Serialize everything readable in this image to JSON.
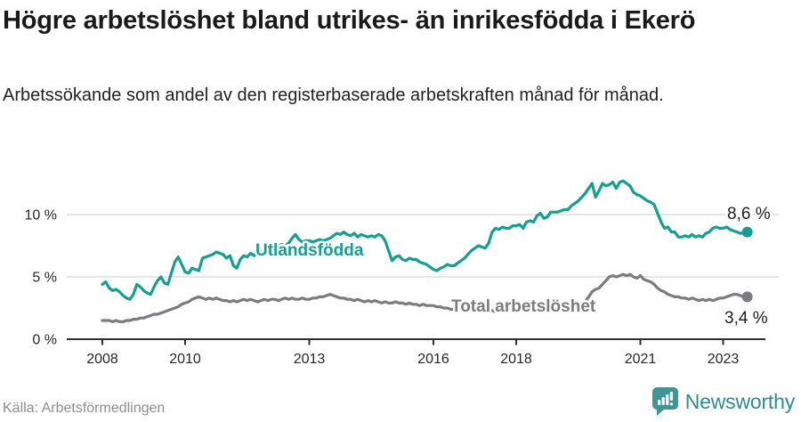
{
  "header": {
    "title": "Högre arbetslöshet bland utrikes- än inrikesfödda i Ekerö",
    "subtitle": "Arbetssökande som andel av den registerbaserade arbetskraften månad för månad."
  },
  "footer": {
    "source": "Källa: Arbetsförmedlingen",
    "brand": "Newsworthy"
  },
  "colors": {
    "foreign_born_line": "#14a091",
    "total_line": "#7c7c7f",
    "axis": "#2f2f2f",
    "gridline": "#dedede",
    "tick_label": "#262626",
    "end_label": "#1c1c1c",
    "brand_teal": "#3e9794"
  },
  "chart_data": {
    "type": "line",
    "title": "Högre arbetslöshet bland utrikes- än inrikesfödda i Ekerö",
    "subtitle": "Arbetssökande som andel av den registerbaserade arbetskraften månad för månad.",
    "x_start_year": 2008,
    "x_step_months": 1,
    "x_tick_years": [
      2008,
      2010,
      2013,
      2016,
      2018,
      2021,
      2023
    ],
    "y_ticks": [
      {
        "value": 0,
        "label": "0 %"
      },
      {
        "value": 5,
        "label": "5 %"
      },
      {
        "value": 10,
        "label": "10 %"
      }
    ],
    "ylim": [
      0,
      13.5
    ],
    "grid": "horizontal",
    "legend_position": "inline-labels",
    "series": [
      {
        "name": "Utlandsfödda",
        "color": "#14a091",
        "end_value": 8.6,
        "end_label": "8,6 %",
        "values": [
          4.4,
          4.6,
          4.1,
          3.9,
          4.0,
          3.8,
          3.5,
          3.3,
          3.2,
          3.6,
          4.4,
          4.2,
          3.9,
          3.7,
          3.6,
          4.2,
          4.7,
          5.0,
          4.5,
          4.4,
          5.3,
          6.2,
          6.6,
          6.0,
          5.4,
          5.3,
          5.7,
          5.6,
          5.5,
          6.5,
          6.6,
          6.7,
          6.8,
          7.0,
          6.9,
          6.8,
          6.5,
          6.7,
          5.9,
          5.7,
          6.4,
          6.7,
          6.6,
          6.9,
          6.7,
          6.9,
          7.0,
          7.1,
          7.2,
          7.3,
          7.4,
          7.5,
          7.6,
          7.5,
          7.7,
          8.1,
          8.4,
          8.0,
          7.8,
          7.9,
          7.9,
          7.8,
          7.9,
          8.0,
          7.9,
          8.0,
          8.1,
          8.3,
          8.5,
          8.4,
          8.6,
          8.4,
          8.3,
          8.5,
          8.2,
          8.4,
          8.3,
          8.2,
          8.3,
          8.2,
          8.4,
          8.3,
          7.9,
          7.1,
          6.3,
          6.6,
          6.7,
          6.4,
          6.3,
          6.5,
          6.4,
          6.4,
          6.2,
          6.1,
          6.0,
          5.8,
          5.6,
          5.5,
          5.7,
          5.8,
          6.0,
          5.9,
          5.9,
          6.1,
          6.3,
          6.5,
          6.8,
          7.1,
          7.3,
          7.5,
          7.4,
          7.3,
          7.7,
          8.6,
          8.9,
          8.8,
          9.0,
          8.9,
          8.9,
          9.1,
          9.1,
          9.2,
          8.9,
          9.4,
          9.5,
          9.4,
          9.9,
          10.1,
          9.7,
          9.8,
          10.2,
          10.2,
          10.2,
          10.3,
          10.4,
          10.4,
          10.7,
          10.9,
          11.1,
          11.4,
          11.7,
          12.1,
          12.5,
          11.4,
          11.9,
          12.5,
          12.3,
          12.4,
          12.6,
          12.1,
          12.6,
          12.7,
          12.5,
          12.3,
          11.8,
          11.6,
          11.5,
          11.3,
          11.1,
          11.0,
          10.8,
          10.1,
          9.4,
          8.9,
          9.0,
          8.6,
          8.6,
          8.2,
          8.2,
          8.3,
          8.2,
          8.4,
          8.2,
          8.3,
          8.2,
          8.5,
          8.6,
          8.9,
          9.0,
          8.9,
          8.9,
          9.0,
          8.8,
          8.7,
          8.6,
          8.5,
          8.5,
          8.6
        ]
      },
      {
        "name": "Total arbetslöshet",
        "color": "#7c7c7f",
        "end_value": 3.4,
        "end_label": "3,4 %",
        "values": [
          1.5,
          1.5,
          1.5,
          1.4,
          1.5,
          1.4,
          1.4,
          1.5,
          1.5,
          1.6,
          1.6,
          1.7,
          1.7,
          1.8,
          1.9,
          2.0,
          2.0,
          2.1,
          2.2,
          2.3,
          2.4,
          2.5,
          2.6,
          2.8,
          2.9,
          3.0,
          3.2,
          3.3,
          3.4,
          3.3,
          3.2,
          3.3,
          3.2,
          3.3,
          3.2,
          3.1,
          3.1,
          3.0,
          3.1,
          3.0,
          3.1,
          3.2,
          3.1,
          3.2,
          3.1,
          3.0,
          3.1,
          3.2,
          3.1,
          3.2,
          3.2,
          3.1,
          3.2,
          3.3,
          3.2,
          3.3,
          3.2,
          3.2,
          3.3,
          3.2,
          3.2,
          3.3,
          3.3,
          3.4,
          3.4,
          3.5,
          3.6,
          3.5,
          3.4,
          3.3,
          3.3,
          3.2,
          3.2,
          3.1,
          3.2,
          3.1,
          3.0,
          3.1,
          3.0,
          3.1,
          3.0,
          2.9,
          3.0,
          2.9,
          2.9,
          3.0,
          2.9,
          2.9,
          2.8,
          2.9,
          2.8,
          2.8,
          2.7,
          2.8,
          2.7,
          2.7,
          2.7,
          2.6,
          2.6,
          2.5,
          2.5,
          2.4,
          2.4,
          2.3,
          2.4,
          2.3,
          2.4,
          2.3,
          2.3,
          2.2,
          2.3,
          2.2,
          2.2,
          2.3,
          2.2,
          2.3,
          2.2,
          2.3,
          2.3,
          2.4,
          2.4,
          2.3,
          2.4,
          2.3,
          2.4,
          2.4,
          2.5,
          2.4,
          2.5,
          2.4,
          2.5,
          2.5,
          2.5,
          2.6,
          2.5,
          2.6,
          2.6,
          2.7,
          2.7,
          2.8,
          3.0,
          3.4,
          3.8,
          4.0,
          4.1,
          4.4,
          4.7,
          5.0,
          5.1,
          5.0,
          5.1,
          5.2,
          5.1,
          5.2,
          5.0,
          4.9,
          5.1,
          4.8,
          4.7,
          4.6,
          4.4,
          4.1,
          3.9,
          3.8,
          3.6,
          3.5,
          3.4,
          3.4,
          3.3,
          3.3,
          3.2,
          3.3,
          3.2,
          3.1,
          3.2,
          3.1,
          3.2,
          3.1,
          3.2,
          3.3,
          3.3,
          3.4,
          3.5,
          3.6,
          3.6,
          3.5,
          3.4,
          3.4
        ]
      }
    ]
  }
}
